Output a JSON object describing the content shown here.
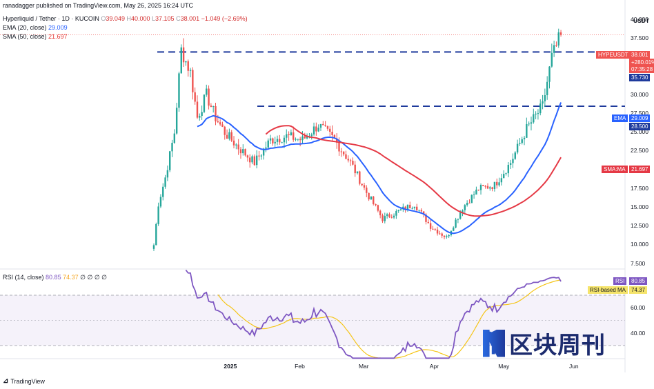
{
  "header": {
    "publisher": "ranadagger published on TradingView.com, May 26, 2025 16:24 UTC",
    "symbol": "Hyperliquid / Tether · 1D · KUCOIN",
    "ohlc": {
      "o_label": "O",
      "o": "39.049",
      "h_label": "H",
      "h": "40.000",
      "l_label": "L",
      "l": "37.105",
      "c_label": "C",
      "c": "38.001",
      "chg": "−1.049 (−2.69%)"
    },
    "ema_label": "EMA (20, close)",
    "ema_value": "29.009",
    "sma_label": "SMA (50, close)",
    "sma_value": "21.697",
    "rsi_label": "RSI (14, close)",
    "rsi_value": "80.85",
    "rsi_ma_value": "74.37",
    "rsi_extra": "∅ ∅ ∅ ∅"
  },
  "axis": {
    "currency": "USDT",
    "price_ticks": [
      "40.000",
      "37.500",
      "35.000",
      "32.500",
      "30.000",
      "27.500",
      "25.000",
      "22.500",
      "20.000",
      "17.500",
      "15.000",
      "12.500",
      "10.000",
      "7.500"
    ],
    "time_ticks": [
      "2025",
      "Feb",
      "Mar",
      "Apr",
      "May",
      "Jun"
    ],
    "rsi_ticks": [
      "60.00",
      "40.00"
    ]
  },
  "tags": {
    "symbol": "HYPEUSDT",
    "price": "38.001",
    "change": "+280.01%",
    "countdown": "07:35:28",
    "level_high": "35.730",
    "ema_tag": "EMA",
    "ema_val": "29.009",
    "level_low": "28.500",
    "sma_tag": "SMA:MA",
    "sma_val": "21.697",
    "rsi_tag": "RSI",
    "rsi_val": "80.85",
    "rsima_tag": "RSI-based MA",
    "rsima_val": "74.37"
  },
  "colors": {
    "up": "#26a69a",
    "down": "#ef5350",
    "ema": "#2962ff",
    "sma": "#e53945",
    "rsi": "#7e57c2",
    "rsi_ma": "#f5c518",
    "level": "#1e3a9c"
  },
  "branding": {
    "tradingview": "TradingView",
    "watermark": "区块周刊"
  },
  "chart_data": {
    "type": "candlestick",
    "title": "Hyperliquid / Tether · 1D · KUCOIN",
    "ylabel": "USDT",
    "ylim": [
      7.5,
      41
    ],
    "x_range": [
      "2024-11-29",
      "2025-05-26"
    ],
    "horizontal_levels": [
      35.73,
      28.5
    ],
    "candles_key": "Approximate daily close prices by week",
    "closes": [
      {
        "date": "2024-11-29",
        "close": 10.0
      },
      {
        "date": "2024-12-01",
        "close": 15.5
      },
      {
        "date": "2024-12-04",
        "close": 19.0
      },
      {
        "date": "2024-12-08",
        "close": 25.0
      },
      {
        "date": "2024-12-11",
        "close": 36.0
      },
      {
        "date": "2024-12-15",
        "close": 33.0
      },
      {
        "date": "2024-12-18",
        "close": 27.0
      },
      {
        "date": "2024-12-22",
        "close": 30.0
      },
      {
        "date": "2024-12-26",
        "close": 27.0
      },
      {
        "date": "2024-12-30",
        "close": 25.0
      },
      {
        "date": "2025-01-05",
        "close": 23.0
      },
      {
        "date": "2025-01-12",
        "close": 21.0
      },
      {
        "date": "2025-01-19",
        "close": 24.0
      },
      {
        "date": "2025-01-26",
        "close": 24.5
      },
      {
        "date": "2025-02-02",
        "close": 24.0
      },
      {
        "date": "2025-02-09",
        "close": 26.0
      },
      {
        "date": "2025-02-16",
        "close": 24.0
      },
      {
        "date": "2025-02-23",
        "close": 21.0
      },
      {
        "date": "2025-03-02",
        "close": 17.0
      },
      {
        "date": "2025-03-09",
        "close": 13.5
      },
      {
        "date": "2025-03-16",
        "close": 14.5
      },
      {
        "date": "2025-03-23",
        "close": 15.5
      },
      {
        "date": "2025-03-30",
        "close": 12.5
      },
      {
        "date": "2025-04-06",
        "close": 11.0
      },
      {
        "date": "2025-04-13",
        "close": 15.0
      },
      {
        "date": "2025-04-20",
        "close": 17.5
      },
      {
        "date": "2025-04-27",
        "close": 18.0
      },
      {
        "date": "2025-05-04",
        "close": 21.0
      },
      {
        "date": "2025-05-11",
        "close": 25.5
      },
      {
        "date": "2025-05-18",
        "close": 28.5
      },
      {
        "date": "2025-05-22",
        "close": 35.0
      },
      {
        "date": "2025-05-26",
        "close": 38.0
      }
    ],
    "series": [
      {
        "name": "EMA (20, close)",
        "last": 29.009
      },
      {
        "name": "SMA (50, close)",
        "last": 21.697
      }
    ],
    "rsi": {
      "name": "RSI (14, close)",
      "last": 80.85,
      "ma_last": 74.37,
      "levels": [
        70,
        30
      ]
    }
  }
}
